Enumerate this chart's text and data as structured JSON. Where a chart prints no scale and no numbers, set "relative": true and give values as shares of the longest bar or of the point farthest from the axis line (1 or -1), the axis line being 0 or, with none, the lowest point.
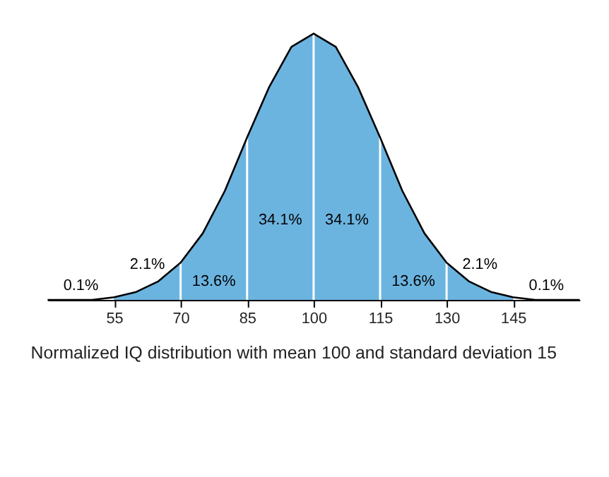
{
  "chart_data": {
    "type": "area",
    "relative": true,
    "xlim": [
      40,
      160
    ],
    "xticks": [
      55,
      70,
      85,
      100,
      115,
      130,
      145
    ],
    "tick_labels": "x",
    "grid": false,
    "series": [
      {
        "type": "area",
        "color": "#6cb4e0",
        "x": [
          55,
          60,
          65,
          70,
          75,
          80,
          85,
          90,
          95,
          100,
          105,
          110,
          115,
          120,
          125,
          130,
          135,
          140,
          145
        ],
        "values": [
          0.01,
          0.03,
          0.07,
          0.14,
          0.25,
          0.41,
          0.61,
          0.8,
          0.95,
          1,
          0.95,
          0.8,
          0.61,
          0.41,
          0.25,
          0.14,
          0.07,
          0.03,
          0.01
        ]
      },
      {
        "type": "line",
        "color": "#000000",
        "x": [
          40,
          45,
          50,
          55,
          60,
          65,
          70,
          75,
          80,
          85,
          90,
          95,
          100,
          105,
          110,
          115,
          120,
          125,
          130,
          135,
          140,
          145,
          150,
          155,
          160
        ],
        "values": [
          0,
          0,
          0,
          0.01,
          0.03,
          0.07,
          0.14,
          0.25,
          0.41,
          0.61,
          0.8,
          0.95,
          1,
          0.95,
          0.8,
          0.61,
          0.41,
          0.25,
          0.14,
          0.07,
          0.03,
          0.01,
          0,
          0,
          0
        ]
      }
    ],
    "ref_lines": [
      {
        "axis": "x",
        "value": 70,
        "color": "#ffffff"
      },
      {
        "axis": "x",
        "value": 85,
        "color": "#ffffff"
      },
      {
        "axis": "x",
        "value": 100,
        "color": "#ffffff"
      },
      {
        "axis": "x",
        "value": 115,
        "color": "#ffffff"
      },
      {
        "axis": "x",
        "value": 130,
        "color": "#ffffff"
      }
    ],
    "annotations": [
      "0.1%",
      "2.1%",
      "13.6%",
      "34.1%",
      "34.1%",
      "13.6%",
      "2.1%",
      "0.1%",
      "Normalized IQ distribution with mean 100 and standard deviation 15"
    ]
  }
}
